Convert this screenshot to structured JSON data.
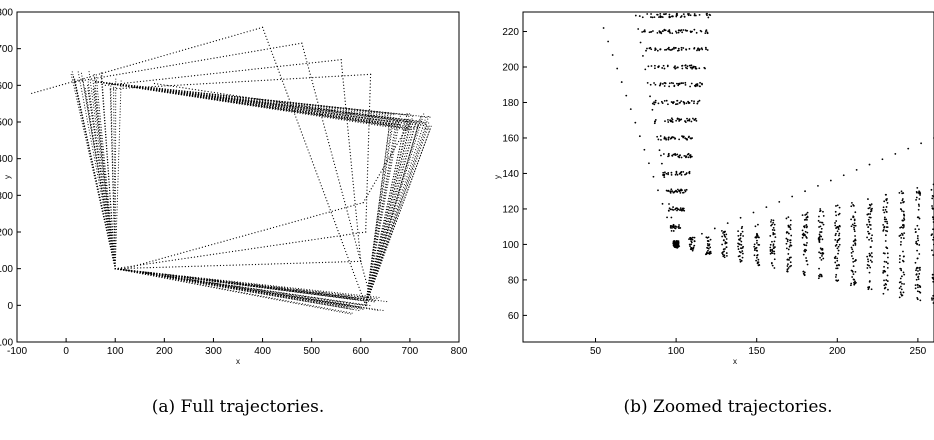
{
  "chart_data": [
    {
      "type": "scatter",
      "panel": "a",
      "caption": "(a) Full trajectories.",
      "xlabel": "x",
      "ylabel": "y",
      "xlim": [
        -100,
        800
      ],
      "ylim": [
        -100,
        800
      ],
      "xticks": [
        -100,
        0,
        100,
        200,
        300,
        400,
        500,
        600,
        700,
        800
      ],
      "yticks": [
        -100,
        0,
        100,
        200,
        300,
        400,
        500,
        600,
        700,
        800
      ],
      "grid": false,
      "corners": [
        [
          100,
          100
        ],
        [
          610,
          0
        ],
        [
          700,
          500
        ],
        [
          60,
          610
        ]
      ],
      "outer_paths": [
        [
          [
            -70,
            578
          ],
          [
            400,
            758
          ],
          [
            610,
            0
          ],
          [
            100,
            100
          ]
        ],
        [
          [
            20,
            610
          ],
          [
            480,
            715
          ],
          [
            620,
            20
          ],
          [
            100,
            100
          ]
        ],
        [
          [
            80,
            600
          ],
          [
            560,
            670
          ],
          [
            600,
            120
          ],
          [
            100,
            100
          ]
        ],
        [
          [
            90,
            590
          ],
          [
            620,
            630
          ],
          [
            610,
            200
          ],
          [
            100,
            100
          ]
        ],
        [
          [
            180,
            605
          ],
          [
            700,
            500
          ],
          [
            605,
            280
          ],
          [
            120,
            100
          ]
        ]
      ]
    },
    {
      "type": "scatter",
      "panel": "b",
      "caption": "(b) Zoomed trajectories.",
      "xlabel": "x",
      "ylabel": "y",
      "xlim": [
        5,
        260
      ],
      "ylim": [
        45,
        231
      ],
      "xticks": [
        50,
        100,
        150,
        200,
        250
      ],
      "yticks": [
        60,
        80,
        100,
        120,
        140,
        160,
        180,
        200,
        220
      ],
      "grid": false,
      "corner": [
        100,
        100
      ],
      "vertical_bands": {
        "x_center": 100,
        "y_levels": [
          100,
          110,
          120,
          130,
          140,
          150,
          160,
          170,
          180,
          190,
          200,
          210,
          220,
          229
        ]
      },
      "horizontal_bands": {
        "y_center": 100,
        "x_levels": [
          100,
          110,
          120,
          130,
          140,
          150,
          160,
          170,
          180,
          190,
          200,
          210,
          220,
          230,
          240,
          250,
          260
        ]
      },
      "outer_paths": [
        [
          [
            55,
            222
          ],
          [
            100,
            100
          ],
          [
            260,
            160
          ]
        ],
        [
          [
            75,
            229
          ],
          [
            100,
            100
          ]
        ]
      ]
    }
  ]
}
